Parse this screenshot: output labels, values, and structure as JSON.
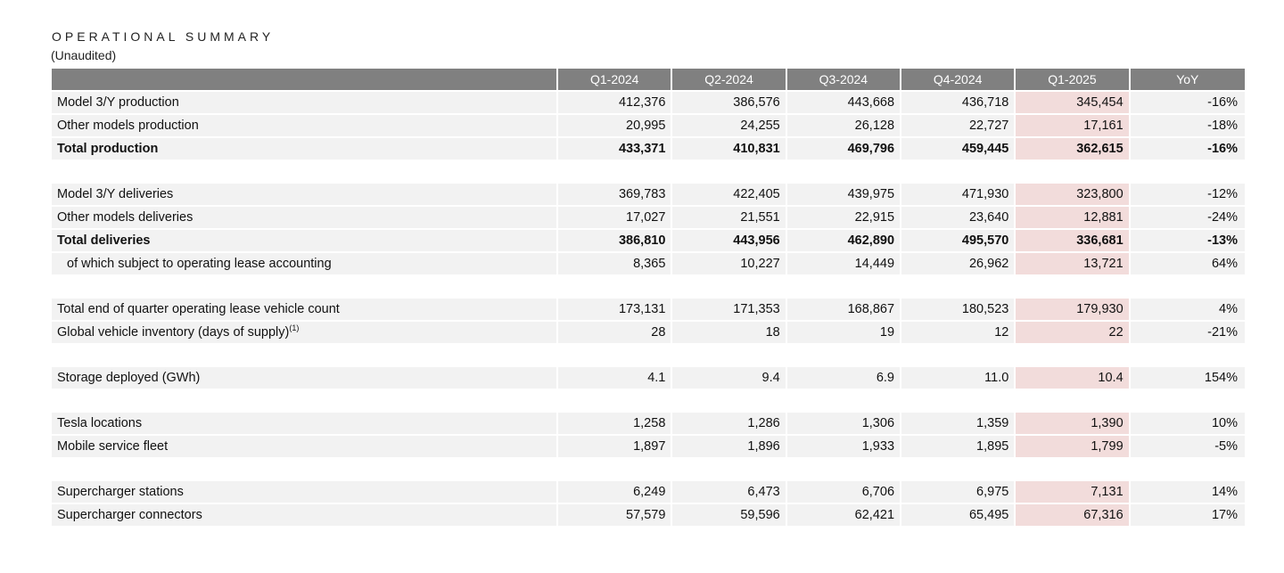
{
  "title": "OPERATIONAL SUMMARY",
  "subtitle": "(Unaudited)",
  "columns": [
    "Q1-2024",
    "Q2-2024",
    "Q3-2024",
    "Q4-2024",
    "Q1-2025",
    "YoY"
  ],
  "highlight_color": "#f2dcdb",
  "header_color": "#808080",
  "groups": [
    [
      {
        "label": "Model 3/Y production",
        "values": [
          "412,376",
          "386,576",
          "443,668",
          "436,718",
          "345,454",
          "-16%"
        ]
      },
      {
        "label": "Other models production",
        "values": [
          "20,995",
          "24,255",
          "26,128",
          "22,727",
          "17,161",
          "-18%"
        ]
      },
      {
        "label": "Total production",
        "bold": true,
        "values": [
          "433,371",
          "410,831",
          "469,796",
          "459,445",
          "362,615",
          "-16%"
        ]
      }
    ],
    [
      {
        "label": "Model 3/Y deliveries",
        "values": [
          "369,783",
          "422,405",
          "439,975",
          "471,930",
          "323,800",
          "-12%"
        ]
      },
      {
        "label": "Other models deliveries",
        "values": [
          "17,027",
          "21,551",
          "22,915",
          "23,640",
          "12,881",
          "-24%"
        ]
      },
      {
        "label": "Total deliveries",
        "bold": true,
        "values": [
          "386,810",
          "443,956",
          "462,890",
          "495,570",
          "336,681",
          "-13%"
        ]
      },
      {
        "label": "of which subject to operating lease accounting",
        "indent": true,
        "values": [
          "8,365",
          "10,227",
          "14,449",
          "26,962",
          "13,721",
          "64%"
        ]
      }
    ],
    [
      {
        "label": "Total end of quarter operating lease vehicle count",
        "values": [
          "173,131",
          "171,353",
          "168,867",
          "180,523",
          "179,930",
          "4%"
        ]
      },
      {
        "label": "Global vehicle inventory (days of supply)",
        "sup": "(1)",
        "values": [
          "28",
          "18",
          "19",
          "12",
          "22",
          "-21%"
        ]
      }
    ],
    [
      {
        "label": "Storage deployed (GWh)",
        "values": [
          "4.1",
          "9.4",
          "6.9",
          "11.0",
          "10.4",
          "154%"
        ]
      }
    ],
    [
      {
        "label": "Tesla locations",
        "values": [
          "1,258",
          "1,286",
          "1,306",
          "1,359",
          "1,390",
          "10%"
        ]
      },
      {
        "label": "Mobile service fleet",
        "values": [
          "1,897",
          "1,896",
          "1,933",
          "1,895",
          "1,799",
          "-5%"
        ]
      }
    ],
    [
      {
        "label": "Supercharger stations",
        "values": [
          "6,249",
          "6,473",
          "6,706",
          "6,975",
          "7,131",
          "14%"
        ]
      },
      {
        "label": "Supercharger connectors",
        "values": [
          "57,579",
          "59,596",
          "62,421",
          "65,495",
          "67,316",
          "17%"
        ]
      }
    ]
  ]
}
